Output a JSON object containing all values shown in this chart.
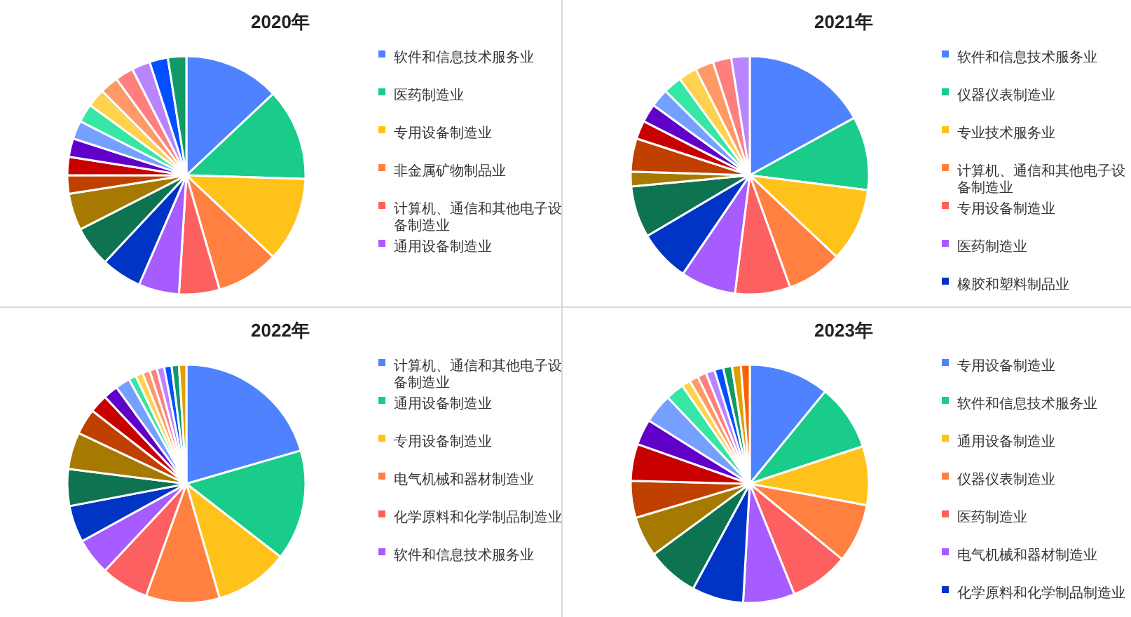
{
  "chart_data": [
    {
      "type": "pie",
      "title": "2020年",
      "legend": "right",
      "categories": [
        "软件和信息技术服务业",
        "医药制造业",
        "专用设备制造业",
        "非金属矿物制品业",
        "计算机、通信和其他电子设备制造业",
        "通用设备制造业",
        null,
        null,
        null,
        null,
        null,
        null,
        null,
        null,
        null,
        null,
        null,
        null,
        null,
        null
      ],
      "values": [
        13,
        12.5,
        11.5,
        8.5,
        5.5,
        5.5,
        5.5,
        5.5,
        5,
        2.5,
        2.5,
        2.5,
        2.5,
        2.5,
        2.5,
        2.5,
        2.5,
        2.5,
        2.5,
        2.5
      ],
      "colors": [
        "#4e82fe",
        "#19cc8a",
        "#ffc21a",
        "#ff8040",
        "#fc6060",
        "#a65cff",
        "#0034c4",
        "#0e7350",
        "#a67a00",
        "#c04000",
        "#c80000",
        "#6000c8",
        "#76a0ff",
        "#35e6a4",
        "#ffd24d",
        "#ff9966",
        "#ff7f7f",
        "#b985ff",
        "#0050ff",
        "#119966"
      ]
    },
    {
      "type": "pie",
      "title": "2021年",
      "legend": "right",
      "categories": [
        "软件和信息技术服务业",
        "仪器仪表制造业",
        "专业技术服务业",
        "计算机、通信和其他电子设备制造业",
        "专用设备制造业",
        "医药制造业",
        "橡胶和塑料制品业",
        null,
        null,
        null,
        null,
        null,
        null,
        null,
        null,
        null,
        null,
        null
      ],
      "values": [
        17,
        10,
        10,
        7.5,
        7.5,
        7.5,
        7,
        7,
        2,
        4.5,
        2.5,
        2.5,
        2.5,
        2.5,
        2.5,
        2.5,
        2.5,
        2.5
      ],
      "colors": [
        "#4e82fe",
        "#19cc8a",
        "#ffc21a",
        "#ff8040",
        "#fc6060",
        "#a65cff",
        "#0034c4",
        "#0e7350",
        "#a67a00",
        "#c04000",
        "#c80000",
        "#6000c8",
        "#76a0ff",
        "#35e6a4",
        "#ffd24d",
        "#ff9966",
        "#ff7f7f",
        "#b985ff"
      ]
    },
    {
      "type": "pie",
      "title": "2022年",
      "legend": "right",
      "categories": [
        "计算机、通信和其他电子设备制造业",
        "通用设备制造业",
        "专用设备制造业",
        "电气机械和器材制造业",
        "化学原料和化学制品制造业",
        "软件和信息技术服务业",
        null,
        null,
        null,
        null,
        null,
        null,
        null,
        null,
        null,
        null,
        null,
        null,
        null,
        null,
        null
      ],
      "values": [
        20.5,
        15,
        10,
        10,
        6.5,
        5,
        5,
        5,
        5,
        3.5,
        2.5,
        2,
        2,
        1,
        1,
        1,
        1,
        1,
        1,
        1,
        1
      ],
      "colors": [
        "#4e82fe",
        "#19cc8a",
        "#ffc21a",
        "#ff8040",
        "#fc6060",
        "#a65cff",
        "#0034c4",
        "#0e7350",
        "#a67a00",
        "#c04000",
        "#c80000",
        "#6000c8",
        "#76a0ff",
        "#35e6a4",
        "#ffd24d",
        "#ff9966",
        "#ff7f7f",
        "#b985ff",
        "#0050ff",
        "#119966",
        "#e0a000"
      ]
    },
    {
      "type": "pie",
      "title": "2023年",
      "legend": "right",
      "categories": [
        "专用设备制造业",
        "软件和信息技术服务业",
        "通用设备制造业",
        "仪器仪表制造业",
        "医药制造业",
        "电气机械和器材制造业",
        "化学原料和化学制品制造业",
        null,
        null,
        null,
        null,
        null,
        null,
        null,
        null,
        null,
        null,
        null,
        null,
        null,
        null,
        null
      ],
      "values": [
        10.9,
        9,
        8,
        8,
        8,
        7,
        7,
        7,
        5.5,
        5,
        5,
        3.5,
        4,
        2.5,
        1.2,
        1.2,
        1.2,
        1.2,
        1.2,
        1.2,
        1.2,
        1.2
      ],
      "colors": [
        "#4e82fe",
        "#19cc8a",
        "#ffc21a",
        "#ff8040",
        "#fc6060",
        "#a65cff",
        "#0034c4",
        "#0e7350",
        "#a67a00",
        "#c04000",
        "#c80000",
        "#6000c8",
        "#76a0ff",
        "#35e6a4",
        "#ffd24d",
        "#ff9966",
        "#ff7f7f",
        "#b985ff",
        "#0050ff",
        "#119966",
        "#e0a000",
        "#ff6000"
      ]
    }
  ]
}
